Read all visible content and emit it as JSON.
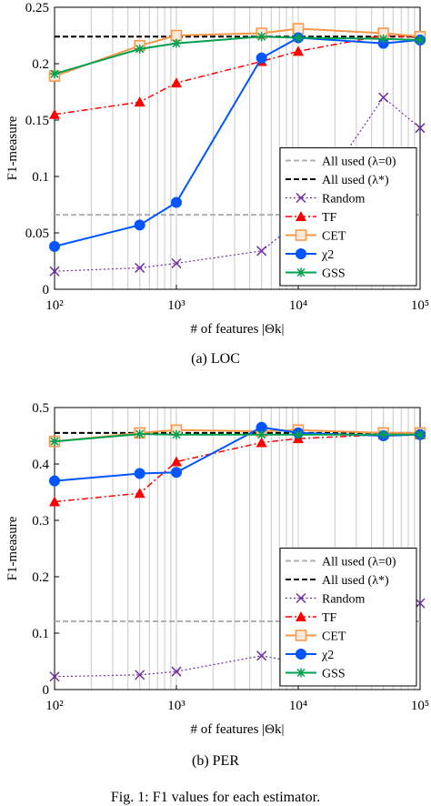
{
  "figure": {
    "caption": "Fig. 1: F1 values for each estimator."
  },
  "chart_data": [
    {
      "type": "line",
      "caption": "(a)  LOC",
      "xlabel": "# of features |Θk|",
      "ylabel": "F1-measure",
      "xscale": "log",
      "xlim": [
        100,
        100000
      ],
      "ylim": [
        0,
        0.25
      ],
      "yticks": [
        0,
        0.05,
        0.1,
        0.15,
        0.2,
        0.25
      ],
      "ytick_labels": [
        "0",
        "0.05",
        "0.1",
        "0.15",
        "0.2",
        "0.25"
      ],
      "xticks": [
        100,
        1000,
        10000,
        100000
      ],
      "xtick_labels": [
        "10²",
        "10³",
        "10⁴",
        "10⁵"
      ],
      "grid": "vertical log grid",
      "legend_position": "bottom-right",
      "reference_lines": [
        {
          "name": "All used (λ=0)",
          "y": 0.066,
          "color": "#b0b0b0"
        },
        {
          "name": "All used (λ*)",
          "y": 0.224,
          "color": "#000000"
        }
      ],
      "series": [
        {
          "name": "Random",
          "color": "#7030a0",
          "marker": "x",
          "x": [
            100,
            500,
            1000,
            5000,
            10000,
            50000,
            100000
          ],
          "y": [
            0.016,
            0.019,
            0.023,
            0.034,
            0.06,
            0.17,
            0.143
          ]
        },
        {
          "name": "TF",
          "color": "#ff0000",
          "marker": "triangle",
          "x": [
            100,
            500,
            1000,
            5000,
            10000,
            50000,
            100000
          ],
          "y": [
            0.155,
            0.166,
            0.183,
            0.202,
            0.211,
            0.225,
            0.223
          ]
        },
        {
          "name": "CET",
          "color": "#f79646",
          "marker": "square",
          "x": [
            100,
            500,
            1000,
            5000,
            10000,
            50000,
            100000
          ],
          "y": [
            0.189,
            0.216,
            0.225,
            0.227,
            0.231,
            0.227,
            0.224
          ]
        },
        {
          "name": "χ2",
          "color": "#0055ff",
          "marker": "circle",
          "x": [
            100,
            500,
            1000,
            5000,
            10000,
            50000,
            100000
          ],
          "y": [
            0.038,
            0.057,
            0.077,
            0.205,
            0.223,
            0.218,
            0.221
          ]
        },
        {
          "name": "GSS",
          "color": "#00a050",
          "marker": "star",
          "x": [
            100,
            500,
            1000,
            5000,
            10000,
            50000,
            100000
          ],
          "y": [
            0.191,
            0.213,
            0.218,
            0.224,
            0.223,
            0.222,
            0.221
          ]
        }
      ]
    },
    {
      "type": "line",
      "caption": "(b)  PER",
      "xlabel": "# of features |Θk|",
      "ylabel": "F1-measure",
      "xscale": "log",
      "xlim": [
        100,
        100000
      ],
      "ylim": [
        0,
        0.5
      ],
      "yticks": [
        0,
        0.1,
        0.2,
        0.3,
        0.4,
        0.5
      ],
      "ytick_labels": [
        "0",
        "0.1",
        "0.2",
        "0.3",
        "0.4",
        "0.5"
      ],
      "xticks": [
        100,
        1000,
        10000,
        100000
      ],
      "xtick_labels": [
        "10²",
        "10³",
        "10⁴",
        "10⁵"
      ],
      "grid": "vertical log grid",
      "legend_position": "bottom-right",
      "reference_lines": [
        {
          "name": "All used (λ=0)",
          "y": 0.121,
          "color": "#b0b0b0"
        },
        {
          "name": "All used (λ*)",
          "y": 0.455,
          "color": "#000000"
        }
      ],
      "series": [
        {
          "name": "Random",
          "color": "#7030a0",
          "marker": "x",
          "x": [
            100,
            500,
            1000,
            5000,
            10000,
            50000,
            100000
          ],
          "y": [
            0.023,
            0.026,
            0.032,
            0.06,
            0.048,
            0.122,
            0.153
          ]
        },
        {
          "name": "TF",
          "color": "#ff0000",
          "marker": "triangle",
          "x": [
            100,
            500,
            1000,
            5000,
            10000,
            50000,
            100000
          ],
          "y": [
            0.333,
            0.348,
            0.404,
            0.438,
            0.445,
            0.452,
            0.452
          ]
        },
        {
          "name": "CET",
          "color": "#f79646",
          "marker": "square",
          "x": [
            100,
            500,
            1000,
            5000,
            10000,
            50000,
            100000
          ],
          "y": [
            0.44,
            0.455,
            0.46,
            0.458,
            0.46,
            0.455,
            0.455
          ]
        },
        {
          "name": "χ2",
          "color": "#0055ff",
          "marker": "circle",
          "x": [
            100,
            500,
            1000,
            5000,
            10000,
            50000,
            100000
          ],
          "y": [
            0.37,
            0.383,
            0.385,
            0.465,
            0.455,
            0.45,
            0.452
          ]
        },
        {
          "name": "GSS",
          "color": "#00a050",
          "marker": "star",
          "x": [
            100,
            500,
            1000,
            5000,
            10000,
            50000,
            100000
          ],
          "y": [
            0.44,
            0.453,
            0.452,
            0.452,
            0.452,
            0.452,
            0.452
          ]
        }
      ]
    }
  ]
}
